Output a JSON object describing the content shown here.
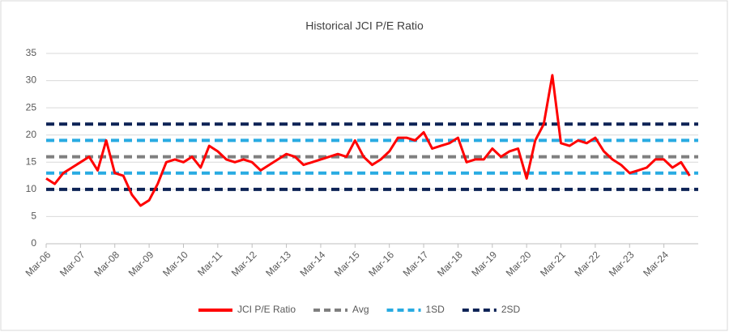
{
  "chart_data": {
    "type": "line",
    "title": "Historical JCI P/E Ratio",
    "categories": [
      "Mar-06",
      null,
      null,
      null,
      "Mar-07",
      null,
      null,
      null,
      "Mar-08",
      null,
      null,
      null,
      "Mar-09",
      null,
      null,
      null,
      "Mar-10",
      null,
      null,
      null,
      "Mar-11",
      null,
      null,
      null,
      "Mar-12",
      null,
      null,
      null,
      "Mar-13",
      null,
      null,
      null,
      "Mar-14",
      null,
      null,
      null,
      "Mar-15",
      null,
      null,
      null,
      "Mar-16",
      null,
      null,
      null,
      "Mar-17",
      null,
      null,
      null,
      "Mar-18",
      null,
      null,
      null,
      "Mar-19",
      null,
      null,
      null,
      "Mar-20",
      null,
      null,
      null,
      "Mar-21",
      null,
      null,
      null,
      "Mar-22",
      null,
      null,
      null,
      "Mar-23",
      null,
      null,
      null,
      "Mar-24",
      null,
      null,
      null
    ],
    "series": [
      {
        "name": "JCI P/E Ratio",
        "color": "#ff0000",
        "values": [
          12,
          11,
          13,
          14,
          15,
          16,
          13.5,
          19,
          13,
          12.5,
          9,
          7,
          8,
          11,
          15,
          15.5,
          15,
          16,
          14,
          18,
          17,
          15.5,
          15,
          15.5,
          15,
          13.5,
          14.5,
          15.5,
          16.5,
          16,
          14.5,
          15,
          15.5,
          16,
          16.5,
          16,
          19,
          16,
          14.5,
          15.5,
          17,
          19.5,
          19.5,
          19,
          20.5,
          17.5,
          18,
          18.5,
          19.5,
          15,
          15.5,
          15.5,
          17.5,
          16,
          17,
          17.5,
          12,
          19,
          22,
          31,
          18.5,
          18,
          19,
          18.5,
          19.5,
          17,
          15.5,
          14.5,
          13,
          13.5,
          14,
          15.5,
          15.5,
          14,
          15,
          12.5
        ]
      }
    ],
    "reference_lines": [
      {
        "name": "Avg",
        "color": "#7f7f7f",
        "levels": [
          16
        ]
      },
      {
        "name": "1SD",
        "color": "#29abe2",
        "levels": [
          13,
          19
        ]
      },
      {
        "name": "2SD",
        "color": "#0d2356",
        "levels": [
          10,
          22
        ]
      }
    ],
    "ylim": [
      0,
      35
    ],
    "yticks": [
      0,
      5,
      10,
      15,
      20,
      25,
      30,
      35
    ],
    "grid": true,
    "legend": "bottom"
  }
}
